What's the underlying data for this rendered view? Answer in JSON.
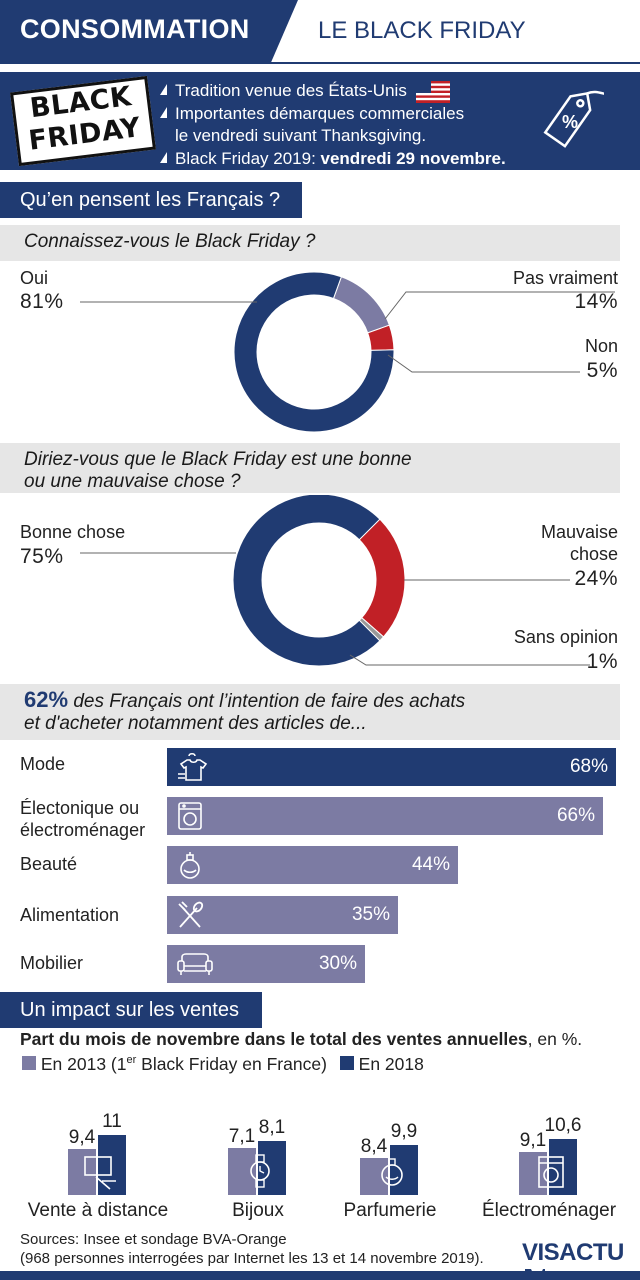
{
  "header": {
    "category": "CONSOMMATION",
    "subject": "LE BLACK FRIDAY"
  },
  "intro": {
    "logo_line1": "BLACK",
    "logo_line2": "FRIDAY",
    "line1": "Tradition venue des États-Unis",
    "line2a": "Importantes démarques commerciales",
    "line2b": "le vendredi suivant Thanksgiving.",
    "line3_prefix": "Black Friday 2019: ",
    "line3_bold": "vendredi 29 novembre.",
    "tag_symbol": "%",
    "icons": [
      "us-flag-icon",
      "price-tag-icon"
    ]
  },
  "section1": {
    "title": "Qu’en pensent les Français ?"
  },
  "donut1": {
    "question": "Connaissez-vous le Black Friday ?",
    "oui_label": "Oui",
    "oui_pct": "81%",
    "pv_label": "Pas vraiment",
    "pv_pct": "14%",
    "non_label": "Non",
    "non_pct": "5%"
  },
  "donut2": {
    "question_line1": "Diriez-vous que le Black Friday est une bonne",
    "question_line2": "ou une mauvaise chose ?",
    "bonne_label": "Bonne chose",
    "bonne_pct": "75%",
    "mauvaise_line1": "Mauvaise",
    "mauvaise_line2": "chose",
    "mauvaise_pct": "24%",
    "sans_label": "Sans opinion",
    "sans_pct": "1%"
  },
  "intent": {
    "lead_pct": "62%",
    "line1_rest": " des Français ont l’intention de faire des achats",
    "line2": "et d'acheter notamment des articles de..."
  },
  "bars": {
    "mode_label": "Mode",
    "mode_val": "68%",
    "elec_label1": "Électonique ou",
    "elec_label2": "électroménager",
    "elec_val": "66%",
    "beaute_label": "Beauté",
    "beaute_val": "44%",
    "alim_label": "Alimentation",
    "alim_val": "35%",
    "mob_label": "Mobilier",
    "mob_val": "30%"
  },
  "impact": {
    "title": "Un impact sur les ventes",
    "subtitle_bold": "Part du mois de novembre dans le total des ventes annuelles",
    "subtitle_rest": ", en %.",
    "legend_2013_a": "En 2013 (1",
    "legend_2013_sup": "er",
    "legend_2013_b": " Black Friday en France)",
    "legend_2018": "En 2018"
  },
  "colors": {
    "navy": "#203b72",
    "lavender": "#7c7ba3",
    "red": "#c12026",
    "band_gray": "#e6e6e6"
  },
  "chart_data": [
    {
      "type": "pie",
      "title": "Connaissez-vous le Black Friday ?",
      "categories": [
        "Oui",
        "Pas vraiment",
        "Non"
      ],
      "values": [
        81,
        14,
        5
      ]
    },
    {
      "type": "pie",
      "title": "Diriez-vous que le Black Friday est une bonne ou une mauvaise chose ?",
      "categories": [
        "Bonne chose",
        "Mauvaise chose",
        "Sans opinion"
      ],
      "values": [
        75,
        24,
        1
      ]
    },
    {
      "type": "bar",
      "title": "62% des Français ont l’intention de faire des achats et d'acheter notamment des articles de...",
      "categories": [
        "Mode",
        "Électonique ou électroménager",
        "Beauté",
        "Alimentation",
        "Mobilier"
      ],
      "values": [
        68,
        66,
        44,
        35,
        30
      ]
    },
    {
      "type": "bar",
      "title": "Part du mois de novembre dans le total des ventes annuelles, en %.",
      "categories": [
        "Vente à distance",
        "Bijoux",
        "Parfumerie",
        "Électroménager"
      ],
      "series": [
        {
          "name": "En 2013 (1er Black Friday en France)",
          "values": [
            9.4,
            7.1,
            8.4,
            9.1
          ],
          "labels": [
            "9,4",
            "7,1",
            "8,4",
            "9,1"
          ]
        },
        {
          "name": "En 2018",
          "values": [
            11,
            8.1,
            9.9,
            10.6
          ],
          "labels": [
            "11",
            "8,1",
            "9,9",
            "10,6"
          ]
        }
      ]
    }
  ],
  "footer": {
    "line1": "Sources: Insee et sondage BVA-Orange",
    "line2": "(968 personnes interrogées par Internet les 13 et 14 novembre 2019).",
    "brand": "VISACTU"
  }
}
